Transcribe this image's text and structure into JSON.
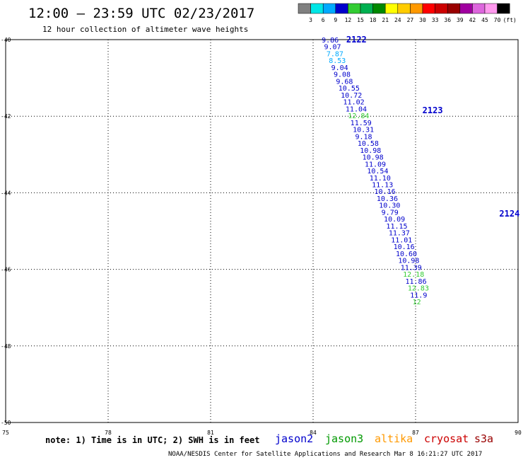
{
  "chart_data": {
    "type": "scatter",
    "title": "12:00 – 23:59 UTC 02/23/2017",
    "subtitle": "12 hour collection of altimeter wave heights",
    "xlabel": "",
    "ylabel": "",
    "xlim": [
      75,
      90
    ],
    "ylim": [
      -50,
      -40
    ],
    "x_ticks": [
      "75",
      "78",
      "81",
      "84",
      "87",
      "90"
    ],
    "y_ticks": [
      "-40",
      "-42",
      "-44",
      "-46",
      "-48",
      "-50"
    ],
    "grid": true,
    "colorbar": {
      "labels": [
        "3",
        "6",
        "9",
        "12",
        "15",
        "18",
        "21",
        "24",
        "27",
        "30",
        "33",
        "36",
        "39",
        "42",
        "45",
        "70",
        "(ft)"
      ],
      "colors": [
        "#808080",
        "#00e6e6",
        "#00aaff",
        "#0000cc",
        "#33cc33",
        "#00b050",
        "#008800",
        "#ffff00",
        "#ffcc00",
        "#ff9900",
        "#ff0000",
        "#cc0000",
        "#990000",
        "#a000a0",
        "#dd66dd",
        "#ff99ee",
        "#000000"
      ]
    },
    "passes": [
      {
        "label": "2122",
        "x": 84.97,
        "y": -40.0
      },
      {
        "label": "2123",
        "x": 87.2,
        "y": -41.85
      },
      {
        "label": "2124",
        "x": 89.45,
        "y": -44.55
      }
    ],
    "series": [
      {
        "name": "jason2",
        "color": "#0000aa",
        "points": [
          {
            "x": 84.25,
            "y": -40.0,
            "v": "9.86",
            "c": "#0000cc"
          },
          {
            "x": 84.32,
            "y": -40.18,
            "v": "9.07",
            "c": "#0000cc"
          },
          {
            "x": 84.39,
            "y": -40.36,
            "v": "7.87",
            "c": "#00aaff"
          },
          {
            "x": 84.46,
            "y": -40.54,
            "v": "8.53",
            "c": "#00aaff"
          },
          {
            "x": 84.53,
            "y": -40.72,
            "v": "9.04",
            "c": "#0000cc"
          },
          {
            "x": 84.6,
            "y": -40.9,
            "v": "9.08",
            "c": "#0000cc"
          },
          {
            "x": 84.67,
            "y": -41.08,
            "v": "9.68",
            "c": "#0000cc"
          },
          {
            "x": 84.74,
            "y": -41.26,
            "v": "10.55",
            "c": "#0000cc"
          },
          {
            "x": 84.81,
            "y": -41.44,
            "v": "10.72",
            "c": "#0000cc"
          },
          {
            "x": 84.88,
            "y": -41.62,
            "v": "11.02",
            "c": "#0000cc"
          },
          {
            "x": 84.95,
            "y": -41.8,
            "v": "11.04",
            "c": "#0000cc"
          },
          {
            "x": 85.02,
            "y": -41.98,
            "v": "12.84",
            "c": "#33cc33"
          },
          {
            "x": 85.09,
            "y": -42.16,
            "v": "11.59",
            "c": "#0000cc"
          },
          {
            "x": 85.16,
            "y": -42.34,
            "v": "10.31",
            "c": "#0000cc"
          },
          {
            "x": 85.23,
            "y": -42.52,
            "v": "9.18",
            "c": "#0000cc"
          },
          {
            "x": 85.3,
            "y": -42.7,
            "v": "10.58",
            "c": "#0000cc"
          },
          {
            "x": 85.37,
            "y": -42.88,
            "v": "10.98",
            "c": "#0000cc"
          },
          {
            "x": 85.44,
            "y": -43.06,
            "v": "10.98",
            "c": "#0000cc"
          },
          {
            "x": 85.51,
            "y": -43.24,
            "v": "11.09",
            "c": "#0000cc"
          },
          {
            "x": 85.58,
            "y": -43.42,
            "v": "10.54",
            "c": "#0000cc"
          },
          {
            "x": 85.65,
            "y": -43.6,
            "v": "11.10",
            "c": "#0000cc"
          },
          {
            "x": 85.72,
            "y": -43.78,
            "v": "11.13",
            "c": "#0000cc"
          },
          {
            "x": 85.79,
            "y": -43.96,
            "v": "10.16",
            "c": "#0000cc"
          },
          {
            "x": 85.86,
            "y": -44.14,
            "v": "10.36",
            "c": "#0000cc"
          },
          {
            "x": 85.93,
            "y": -44.32,
            "v": "10.30",
            "c": "#0000cc"
          },
          {
            "x": 86.0,
            "y": -44.5,
            "v": "9.79",
            "c": "#0000cc"
          },
          {
            "x": 86.07,
            "y": -44.68,
            "v": "10.09",
            "c": "#0000cc"
          },
          {
            "x": 86.14,
            "y": -44.86,
            "v": "11.15",
            "c": "#0000cc"
          },
          {
            "x": 86.21,
            "y": -45.04,
            "v": "11.37",
            "c": "#0000cc"
          },
          {
            "x": 86.28,
            "y": -45.22,
            "v": "11.01",
            "c": "#0000cc"
          },
          {
            "x": 86.35,
            "y": -45.4,
            "v": "10.16",
            "c": "#0000cc"
          },
          {
            "x": 86.42,
            "y": -45.58,
            "v": "10.60",
            "c": "#0000cc"
          },
          {
            "x": 86.49,
            "y": -45.76,
            "v": "10.98",
            "c": "#0000cc"
          },
          {
            "x": 86.56,
            "y": -45.94,
            "v": "11.39",
            "c": "#0000cc"
          },
          {
            "x": 86.63,
            "y": -46.12,
            "v": "12.18",
            "c": "#33cc33"
          },
          {
            "x": 86.7,
            "y": -46.3,
            "v": "11.86",
            "c": "#0000cc"
          },
          {
            "x": 86.77,
            "y": -46.48,
            "v": "12.83",
            "c": "#33cc33"
          },
          {
            "x": 86.84,
            "y": -46.66,
            "v": "11.9",
            "c": "#0000cc"
          },
          {
            "x": 86.91,
            "y": -46.84,
            "v": "12",
            "c": "#33cc33"
          }
        ]
      }
    ],
    "satellites": [
      {
        "name": "jason2",
        "color": "#0000cc"
      },
      {
        "name": "jason3",
        "color": "#009900"
      },
      {
        "name": "altika",
        "color": "#ff9900"
      },
      {
        "name": "cryosat",
        "color": "#cc0000"
      },
      {
        "name": "s3a",
        "color": "#990000"
      }
    ]
  },
  "note": "note: 1) Time is in UTC; 2) SWH is in feet",
  "footer": "NOAA/NESDIS Center for Satellite Applications and Research   Mar  8 16:21:27 UTC 2017"
}
